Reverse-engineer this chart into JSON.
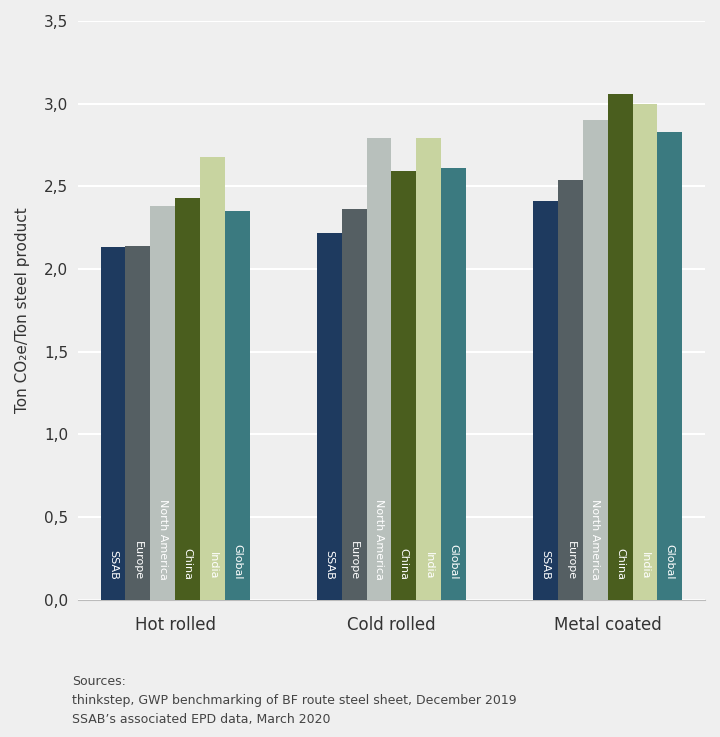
{
  "categories": [
    "Hot rolled",
    "Cold rolled",
    "Metal coated"
  ],
  "series_labels": [
    "SSAB",
    "Europe",
    "North America",
    "China",
    "India",
    "Global"
  ],
  "values": {
    "Hot rolled": [
      2.13,
      2.14,
      2.38,
      2.43,
      2.68,
      2.35
    ],
    "Cold rolled": [
      2.22,
      2.36,
      2.79,
      2.59,
      2.79,
      2.61
    ],
    "Metal coated": [
      2.41,
      2.54,
      2.9,
      3.06,
      3.0,
      2.83
    ]
  },
  "bar_colors": [
    "#1e3a5f",
    "#555f63",
    "#b8c0bc",
    "#4a5e1e",
    "#c8d4a0",
    "#3b7a80"
  ],
  "ylabel": "Ton CO₂e/Ton steel product",
  "ylim": [
    0.0,
    3.5
  ],
  "yticks": [
    0.0,
    0.5,
    1.0,
    1.5,
    2.0,
    2.5,
    3.0,
    3.5
  ],
  "ytick_labels": [
    "0,0",
    "0,5",
    "1,0",
    "1,5",
    "2,0",
    "2,5",
    "3,0",
    "3,5"
  ],
  "background_color": "#efefef",
  "source_text": "Sources:\nthinkstep, GWP benchmarking of BF route steel sheet, December 2019\nSSAB’s associated EPD data, March 2020",
  "bar_label_rotation": 270,
  "bar_label_color": "#ffffff",
  "bar_label_fontsize": 8.0,
  "category_fontsize": 12,
  "ylabel_fontsize": 11,
  "ytick_fontsize": 11,
  "source_fontsize": 9
}
